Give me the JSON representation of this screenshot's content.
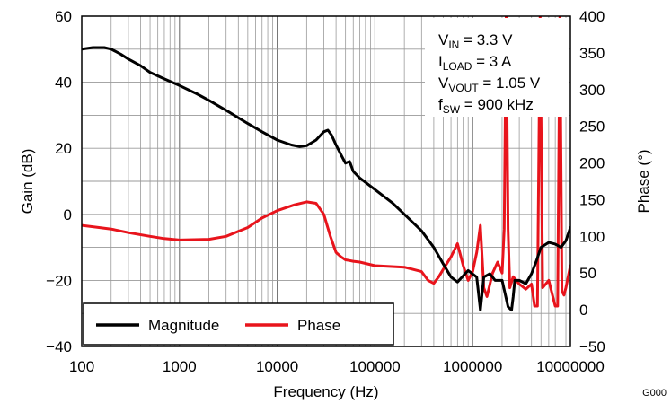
{
  "chart_data": {
    "type": "line",
    "xlabel": "Frequency (Hz)",
    "ylabel_left": "Gain (dB)",
    "ylabel_right": "Phase (°)",
    "x_scale": "log",
    "xlim": [
      100,
      10000000
    ],
    "ylim_left": [
      -40,
      60
    ],
    "ylim_right": [
      -50,
      400
    ],
    "x_ticks": [
      "100",
      "1000",
      "10000",
      "100000",
      "1000000",
      "10000000"
    ],
    "y_ticks_left": [
      "60",
      "40",
      "20",
      "0",
      "−20",
      "−40"
    ],
    "y_ticks_right": [
      "400",
      "350",
      "300",
      "250",
      "200",
      "150",
      "100",
      "50",
      "0",
      "−50"
    ],
    "grid": true,
    "legend": {
      "placement": "bottom-left",
      "entries": [
        "Magnitude",
        "Phase"
      ]
    },
    "conditions": [
      {
        "main": "V",
        "sub": "IN",
        "rest": " = 3.3  V"
      },
      {
        "main": "I",
        "sub": "LOAD",
        "rest": " = 3 A"
      },
      {
        "main": "V",
        "sub": "VOUT",
        "rest": " = 1.05 V"
      },
      {
        "main": "f",
        "sub": "SW",
        "rest": " = 900 kHz"
      }
    ],
    "figure_id": "G000",
    "series": [
      {
        "name": "Magnitude",
        "axis": "left",
        "color": "#000000",
        "x": [
          100,
          130,
          170,
          200,
          250,
          300,
          400,
          500,
          700,
          1000,
          1500,
          2000,
          3000,
          5000,
          7000,
          10000,
          14000,
          17000,
          20000,
          25000,
          30000,
          33000,
          36000,
          40000,
          45000,
          50000,
          55000,
          60000,
          70000,
          100000,
          150000,
          200000,
          300000,
          400000,
          500000,
          600000,
          700000,
          900000,
          1100000,
          1200000,
          1300000,
          1500000,
          1700000,
          2000000,
          2300000,
          2500000,
          2600000,
          2700000,
          3000000,
          3500000,
          4000000,
          4500000,
          5000000,
          6000000,
          7000000,
          8000000,
          9000000,
          10000000
        ],
        "y": [
          50,
          50.5,
          50.5,
          50,
          48.5,
          47,
          45,
          43,
          41,
          39,
          36.5,
          34.5,
          31.5,
          27.5,
          25,
          22.5,
          21,
          20.5,
          20.8,
          22.5,
          25,
          25.5,
          24,
          21,
          18,
          15.5,
          16,
          13,
          11,
          7.5,
          3.5,
          0,
          -5,
          -10,
          -15,
          -19,
          -20.5,
          -17,
          -19,
          -29,
          -19,
          -18,
          -20,
          -20,
          -28,
          -29,
          -25,
          -20,
          -20,
          -21,
          -18,
          -14,
          -10,
          -8.5,
          -9,
          -10,
          -8,
          -4
        ]
      },
      {
        "name": "Phase",
        "axis": "right",
        "color": "#e8141c",
        "x": [
          100,
          150,
          200,
          300,
          500,
          700,
          1000,
          2000,
          3000,
          5000,
          7000,
          10000,
          15000,
          20000,
          25000,
          30000,
          35000,
          40000,
          45000,
          50000,
          55000,
          60000,
          70000,
          100000,
          200000,
          300000,
          350000,
          400000,
          450000,
          500000,
          600000,
          700000,
          800000,
          900000,
          1000000,
          1100000,
          1200000,
          1300000,
          1400000,
          1600000,
          1800000,
          2000000,
          2100000,
          2200000,
          2300000,
          2400000,
          2600000,
          3000000,
          3500000,
          4000000,
          4300000,
          4600000,
          4900000,
          5200000,
          6000000,
          7000000,
          7400000,
          7800000,
          8200000,
          8600000,
          9000000,
          10000000
        ],
        "y": [
          115,
          112,
          110,
          105,
          100,
          97,
          95,
          96,
          100,
          112,
          125,
          135,
          143,
          147,
          145,
          130,
          100,
          78,
          72,
          68,
          67,
          66,
          65,
          60,
          58,
          52,
          40,
          36,
          45,
          55,
          72,
          90,
          60,
          40,
          52,
          78,
          115,
          30,
          18,
          50,
          65,
          50,
          110,
          400,
          110,
          30,
          45,
          35,
          28,
          35,
          5,
          5,
          400,
          30,
          40,
          5,
          5,
          400,
          25,
          20,
          30,
          60
        ]
      }
    ]
  }
}
